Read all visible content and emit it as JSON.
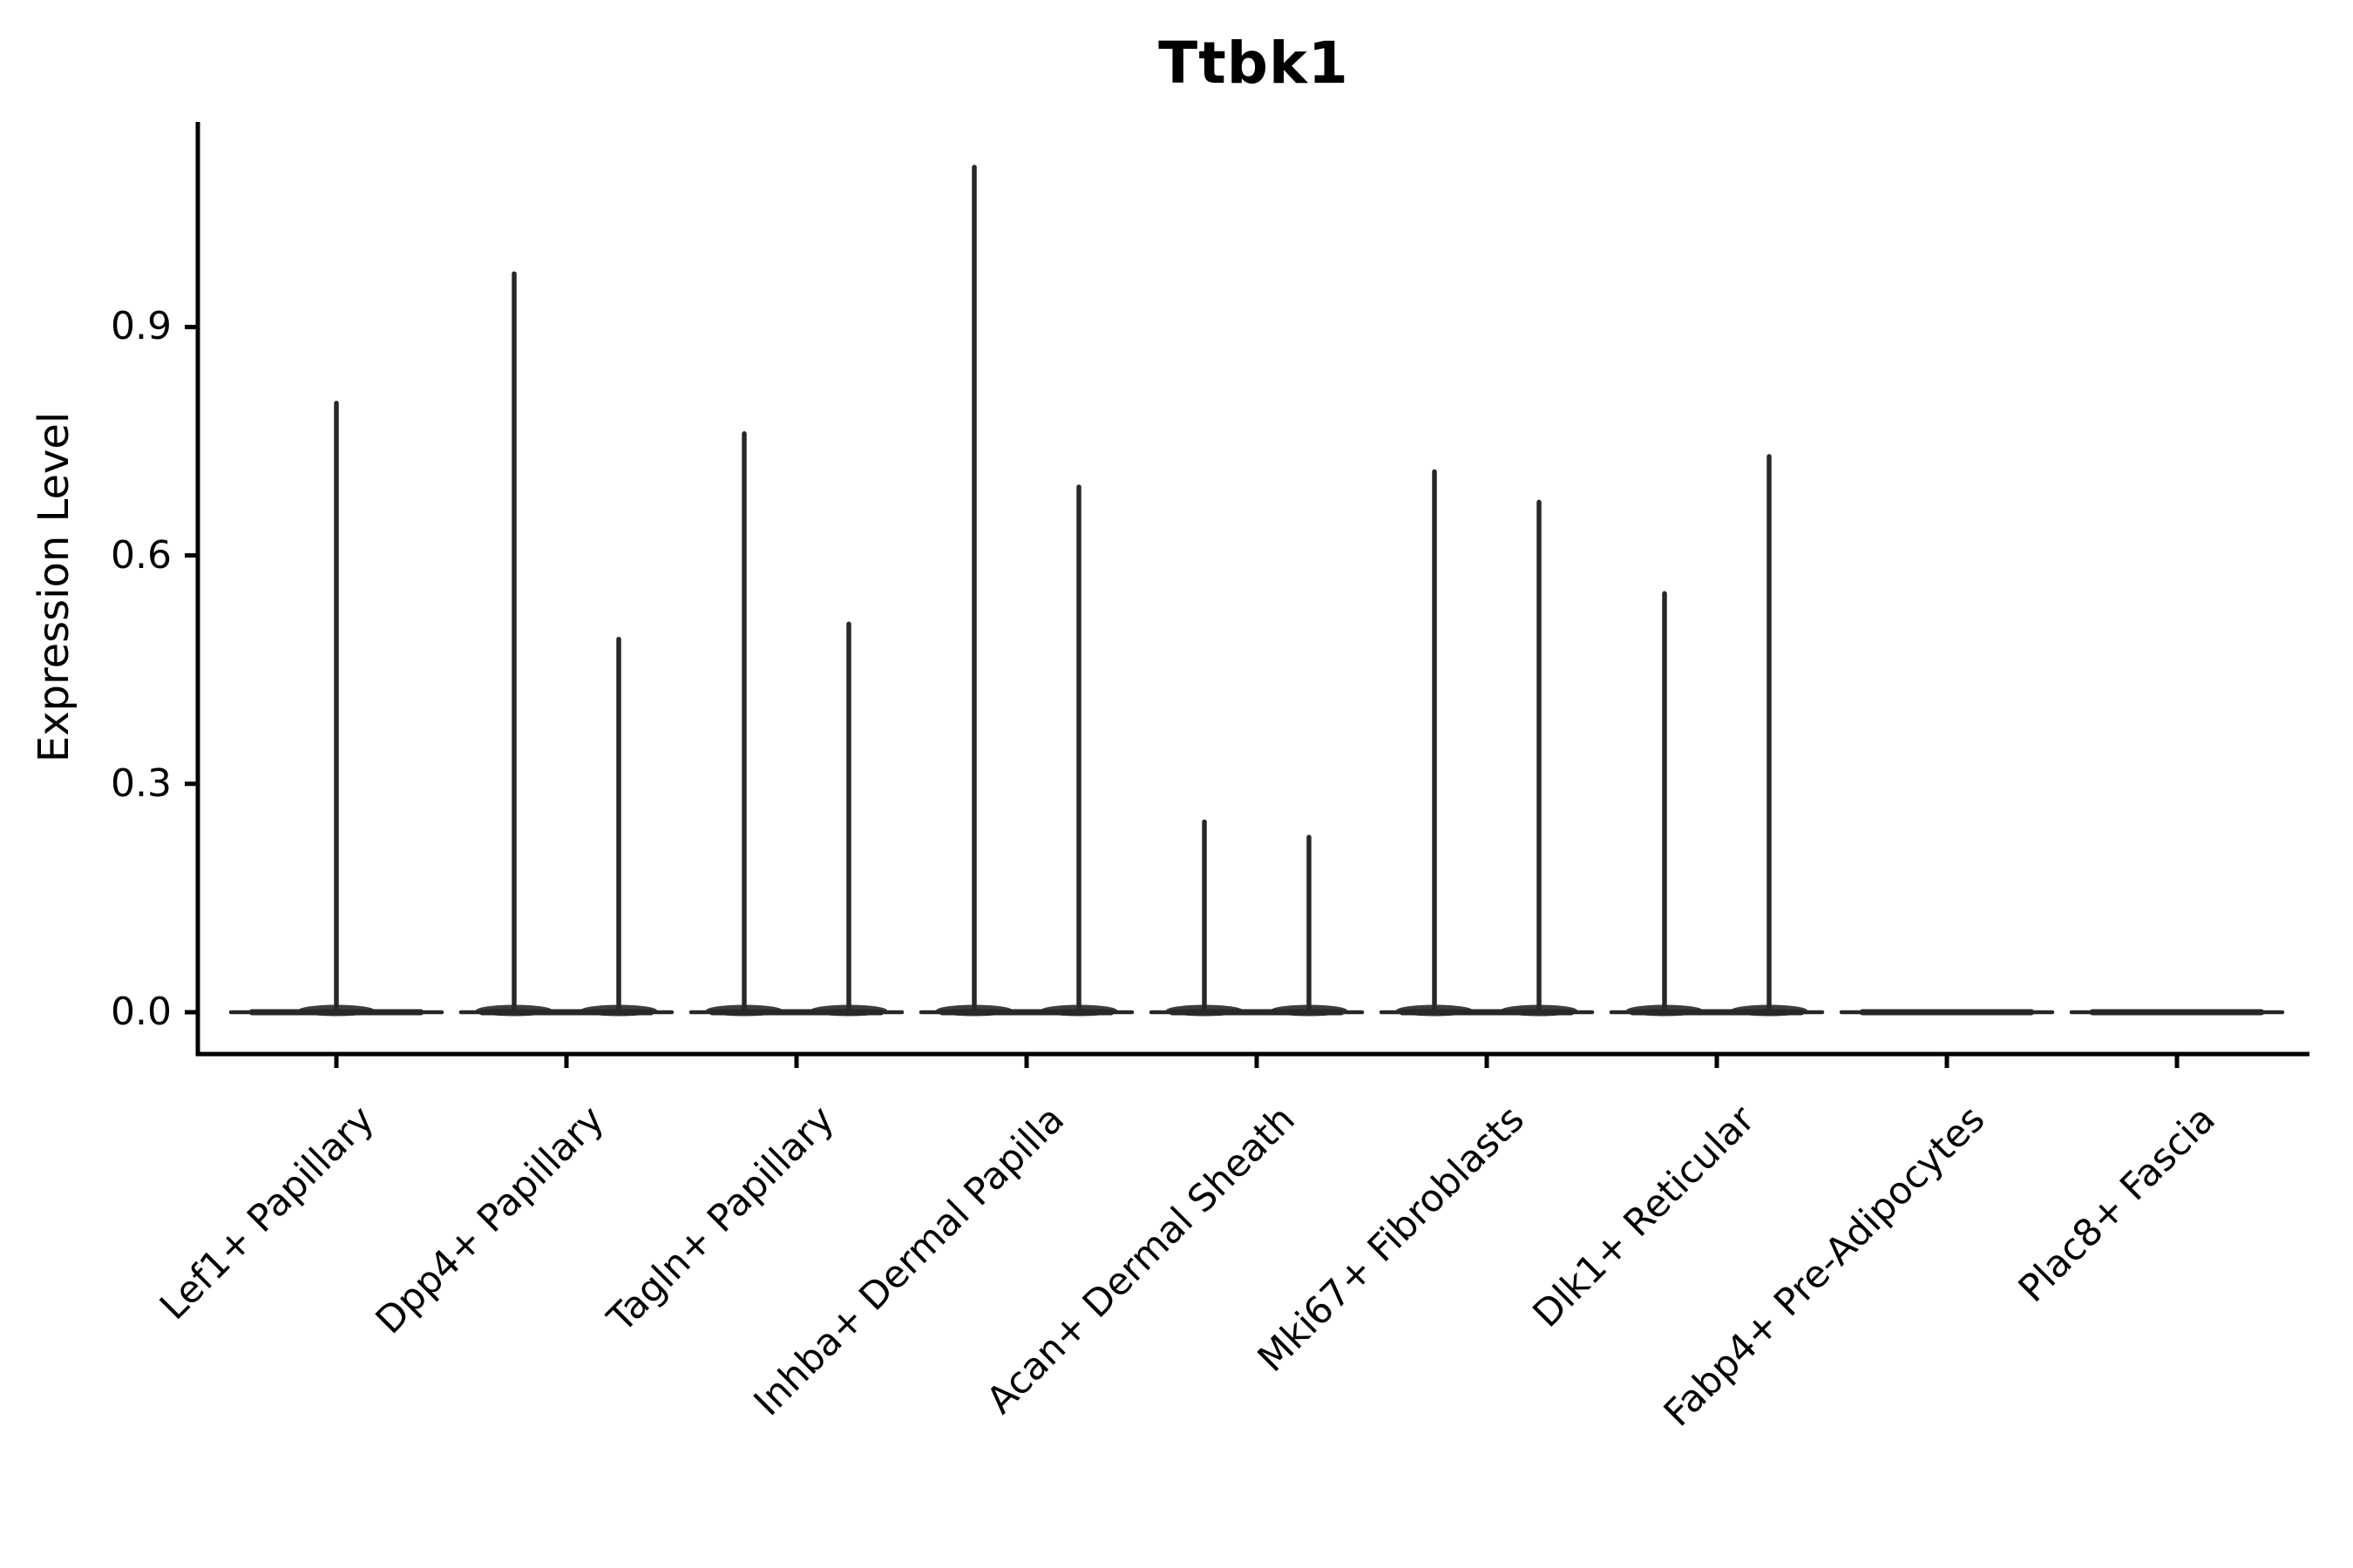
{
  "figure": {
    "title": "Ttbk1",
    "ylabel": "Expression Level",
    "xlabel": ""
  },
  "chart_data": {
    "type": "violin",
    "title": "Ttbk1",
    "xlabel": "",
    "ylabel": "Expression Level",
    "ylim": [
      -0.06,
      1.17
    ],
    "grid": false,
    "legend": "none",
    "yticks": {
      "values": [
        0.0,
        0.3,
        0.6,
        0.9
      ],
      "labels": [
        "0.0",
        "0.3",
        "0.6",
        "0.9"
      ]
    },
    "line_color": "#282828",
    "axis_color": "#000000",
    "categories": [
      {
        "label": "Lef1+ Papillary",
        "violins": [
          {
            "position": "center",
            "max_expression": 0.8
          }
        ]
      },
      {
        "label": "Dpp4+ Papillary",
        "violins": [
          {
            "position": "left",
            "max_expression": 0.97
          },
          {
            "position": "right",
            "max_expression": 0.49
          }
        ]
      },
      {
        "label": "Tagln+ Papillary",
        "violins": [
          {
            "position": "left",
            "max_expression": 0.76
          },
          {
            "position": "right",
            "max_expression": 0.51
          }
        ]
      },
      {
        "label": "Inhba+ Dermal Papilla",
        "violins": [
          {
            "position": "left",
            "max_expression": 1.11
          },
          {
            "position": "right",
            "max_expression": 0.69
          }
        ]
      },
      {
        "label": "Acan+ Dermal Sheath",
        "violins": [
          {
            "position": "left",
            "max_expression": 0.25
          },
          {
            "position": "right",
            "max_expression": 0.23
          }
        ]
      },
      {
        "label": "Mki67+ Fibroblasts",
        "violins": [
          {
            "position": "left",
            "max_expression": 0.71
          },
          {
            "position": "right",
            "max_expression": 0.67
          }
        ]
      },
      {
        "label": "Dlk1+ Reticular",
        "violins": [
          {
            "position": "left",
            "max_expression": 0.55
          },
          {
            "position": "right",
            "max_expression": 0.73
          }
        ]
      },
      {
        "label": "Fabp4+ Pre-Adipocytes",
        "violins": []
      },
      {
        "label": "Plac8+ Fascia",
        "violins": []
      }
    ]
  }
}
